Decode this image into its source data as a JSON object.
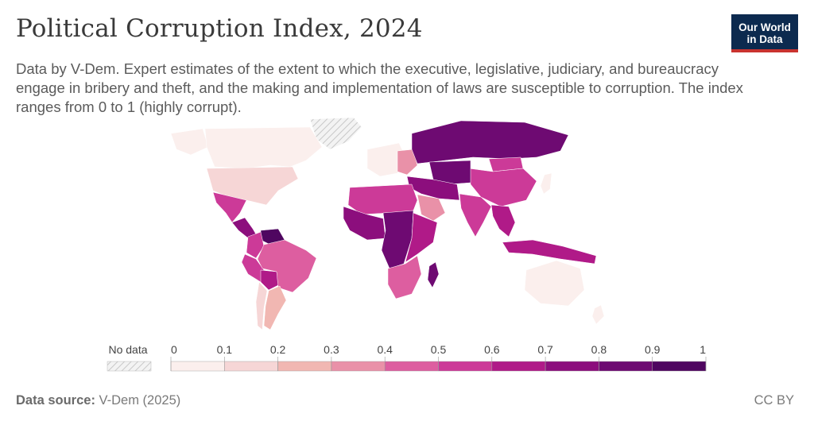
{
  "title": "Political Corruption Index, 2024",
  "subtitle": "Data by V-Dem. Expert estimates of the extent to which the executive, legislative, judiciary, and bureaucracy engage in bribery and theft, and the making and implementation of laws are susceptible to corruption. The index ranges from 0 to 1 (highly corrupt).",
  "logo": {
    "line1": "Our World",
    "line2": "in Data",
    "bg": "#0c2a4f",
    "accent": "#c9332f"
  },
  "legend": {
    "no_data_label": "No data",
    "ticks": [
      "0",
      "0.1",
      "0.2",
      "0.3",
      "0.4",
      "0.5",
      "0.6",
      "0.7",
      "0.8",
      "0.9",
      "1"
    ],
    "colors": [
      "#fbefed",
      "#f6d6d6",
      "#f1b7b2",
      "#e991a8",
      "#dd5ea0",
      "#cc3a98",
      "#b01a88",
      "#8c0e7d",
      "#6e0a72",
      "#4f0660"
    ]
  },
  "footer": {
    "source_label": "Data source:",
    "source_value": "V-Dem (2025)",
    "license": "CC BY"
  },
  "map_regions": [
    {
      "name": "Canada",
      "value": 0.05
    },
    {
      "name": "United States",
      "value": 0.1
    },
    {
      "name": "Mexico",
      "value": 0.5
    },
    {
      "name": "Central America",
      "value": 0.7
    },
    {
      "name": "Venezuela",
      "value": 0.9
    },
    {
      "name": "Colombia",
      "value": 0.5
    },
    {
      "name": "Brazil",
      "value": 0.45
    },
    {
      "name": "Peru",
      "value": 0.55
    },
    {
      "name": "Bolivia",
      "value": 0.6
    },
    {
      "name": "Argentina",
      "value": 0.25
    },
    {
      "name": "Chile",
      "value": 0.1
    },
    {
      "name": "Western Europe",
      "value": 0.05
    },
    {
      "name": "Eastern Europe",
      "value": 0.3
    },
    {
      "name": "Russia",
      "value": 0.8
    },
    {
      "name": "Central Asia",
      "value": 0.8
    },
    {
      "name": "Middle East",
      "value": 0.75
    },
    {
      "name": "Saudi Arabia",
      "value": 0.3
    },
    {
      "name": "North Africa",
      "value": 0.55
    },
    {
      "name": "West Africa",
      "value": 0.7
    },
    {
      "name": "Central Africa",
      "value": 0.85
    },
    {
      "name": "East Africa",
      "value": 0.6
    },
    {
      "name": "Southern Africa",
      "value": 0.45
    },
    {
      "name": "Madagascar",
      "value": 0.8
    },
    {
      "name": "India",
      "value": 0.55
    },
    {
      "name": "China",
      "value": 0.5
    },
    {
      "name": "Mongolia",
      "value": 0.5
    },
    {
      "name": "Southeast Asia",
      "value": 0.65
    },
    {
      "name": "Indonesia",
      "value": 0.6
    },
    {
      "name": "Australia",
      "value": 0.05
    },
    {
      "name": "New Zealand",
      "value": 0.02
    },
    {
      "name": "Japan",
      "value": 0.05
    }
  ]
}
